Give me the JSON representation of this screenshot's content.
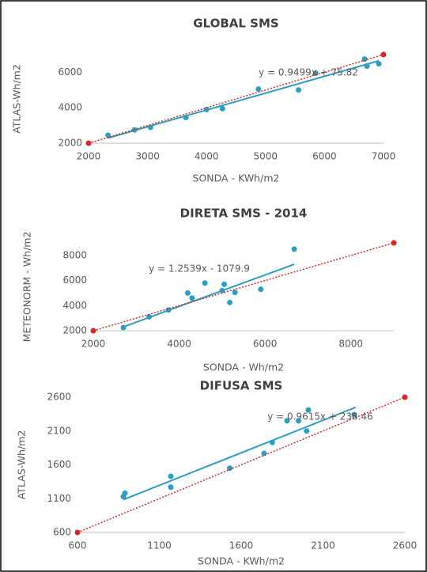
{
  "chart_data": [
    {
      "type": "scatter",
      "title": "GLOBAL SMS",
      "x_label": "SONDA - KWh/m2",
      "y_label": "ATLAS-Wh/m2",
      "xlim": [
        2000,
        7000
      ],
      "xticks": [
        2000,
        3000,
        4000,
        5000,
        6000,
        7000
      ],
      "ylim": [
        2000,
        7000
      ],
      "yticks": [
        2000,
        4000,
        6000
      ],
      "series": [
        {
          "color": "#2e9ec0",
          "x": [
            2330,
            2780,
            3050,
            3650,
            4000,
            4270,
            4880,
            5560,
            5850,
            6680,
            6720,
            6920
          ],
          "values": [
            2450,
            2750,
            2900,
            3450,
            3900,
            3950,
            5050,
            5000,
            5950,
            6750,
            6350,
            6480
          ]
        },
        {
          "color": "#d62728",
          "line": "dotted",
          "x": [
            2000,
            7000
          ],
          "values": [
            2000,
            7000
          ]
        }
      ],
      "trendline": {
        "equation": "y = 0.9499x + 75.82",
        "slope": 0.9499,
        "intercept": 75.82,
        "x": [
          2330,
          6920
        ],
        "color": "#2e9ec0"
      }
    },
    {
      "type": "scatter",
      "title": "DIRETA SMS  - 2014",
      "x_label": "SONDA - Wh/m2",
      "y_label": "METEONORM - Wh/m2",
      "xlim": [
        2000,
        9000
      ],
      "xticks": [
        2000,
        4000,
        6000,
        8000
      ],
      "ylim": [
        2000,
        9000
      ],
      "yticks": [
        2000,
        4000,
        6000,
        8000
      ],
      "series": [
        {
          "color": "#2e9ec0",
          "x": [
            2700,
            3300,
            3750,
            4200,
            4300,
            4600,
            5000,
            5050,
            5180,
            5300,
            5900,
            6680
          ],
          "values": [
            2250,
            3100,
            3650,
            5000,
            4600,
            5800,
            5200,
            5700,
            4250,
            5050,
            5300,
            8500
          ]
        },
        {
          "color": "#d62728",
          "line": "dotted",
          "x": [
            2000,
            9000
          ],
          "values": [
            2000,
            9000
          ]
        }
      ],
      "trendline": {
        "equation": "y = 1.2539x - 1079.9",
        "slope": 1.2539,
        "intercept": -1079.9,
        "x": [
          2700,
          6680
        ],
        "color": "#2e9ec0"
      }
    },
    {
      "type": "scatter",
      "title": "DIFUSA SMS",
      "x_label": "SONDA - KWh/m2",
      "y_label": "ATLAS-Wh/m2",
      "xlim": [
        600,
        2600
      ],
      "xticks": [
        600,
        1100,
        1600,
        2100,
        2600
      ],
      "ylim": [
        600,
        2600
      ],
      "yticks": [
        600,
        1100,
        1600,
        2100,
        2600
      ],
      "series": [
        {
          "color": "#2e9ec0",
          "x": [
            880,
            890,
            1170,
            1170,
            1530,
            1740,
            1790,
            1880,
            1950,
            2000,
            2010,
            2290
          ],
          "values": [
            1130,
            1180,
            1430,
            1270,
            1550,
            1770,
            1930,
            2250,
            2250,
            2100,
            2410,
            2340
          ]
        },
        {
          "color": "#d62728",
          "line": "dotted",
          "x": [
            600,
            2600
          ],
          "values": [
            600,
            2600
          ]
        }
      ],
      "trendline": {
        "equation": "y = 0.9615x + 238.46",
        "slope": 0.9615,
        "intercept": 238.46,
        "x": [
          880,
          2300
        ],
        "color": "#2e9ec0"
      }
    }
  ]
}
